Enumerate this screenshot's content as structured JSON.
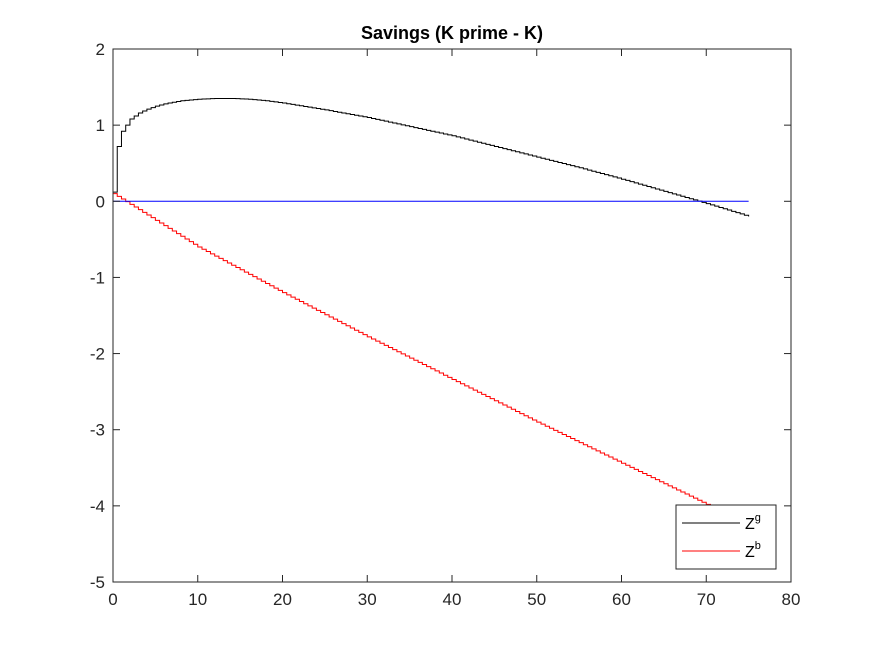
{
  "chart_data": {
    "type": "line",
    "title": "Savings (K prime - K)",
    "xlabel": "",
    "ylabel": "",
    "xlim": [
      0,
      80
    ],
    "ylim": [
      -5,
      2
    ],
    "xticks": [
      0,
      10,
      20,
      30,
      40,
      50,
      60,
      70,
      80
    ],
    "yticks": [
      -5,
      -4,
      -3,
      -2,
      -1,
      0,
      1,
      2
    ],
    "xtick_labels": [
      "0",
      "10",
      "20",
      "30",
      "40",
      "50",
      "60",
      "70",
      "80"
    ],
    "ytick_labels": [
      "-5",
      "-4",
      "-3",
      "-2",
      "-1",
      "0",
      "1",
      "2"
    ],
    "grid": false,
    "legend_position": "bottom-right",
    "series": [
      {
        "name": "Z^g",
        "legend_base": "Z",
        "legend_sup": "g",
        "color": "#000000",
        "step": true,
        "x": [
          0,
          0.5,
          1,
          2,
          3,
          4,
          5,
          6,
          8,
          10,
          12,
          14,
          16,
          18,
          20,
          25,
          30,
          35,
          40,
          45,
          50,
          55,
          60,
          65,
          70,
          75
        ],
        "y": [
          0.12,
          0.72,
          0.92,
          1.08,
          1.16,
          1.21,
          1.25,
          1.28,
          1.32,
          1.34,
          1.35,
          1.35,
          1.34,
          1.32,
          1.29,
          1.2,
          1.1,
          0.98,
          0.86,
          0.72,
          0.58,
          0.44,
          0.29,
          0.13,
          -0.03,
          -0.2
        ]
      },
      {
        "name": "Z^b",
        "legend_base": "Z",
        "legend_sup": "b",
        "color": "#ff0000",
        "step": true,
        "x": [
          0,
          10,
          20,
          30,
          40,
          50,
          60,
          70,
          75
        ],
        "y": [
          0.1,
          -0.6,
          -1.2,
          -1.78,
          -2.34,
          -2.9,
          -3.44,
          -3.98,
          -4.25
        ]
      },
      {
        "name": "",
        "color": "#0000ff",
        "step": false,
        "x": [
          0,
          75
        ],
        "y": [
          0,
          0
        ]
      }
    ]
  }
}
